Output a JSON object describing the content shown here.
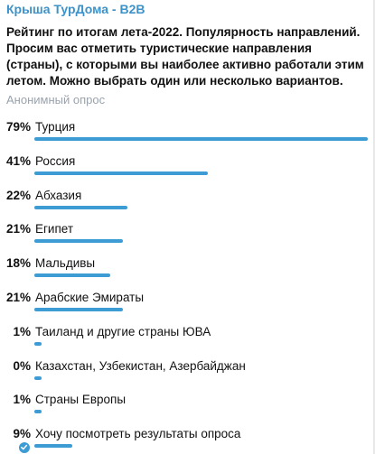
{
  "header": {
    "channel_name": "Крыша ТурДома - B2B"
  },
  "poll": {
    "question": "Рейтинг по итогам лета-2022. Популярность направлений. Просим вас отметить туристические направления (страны), с которыми вы наиболее активно работали этим летом. Можно выбрать один или несколько вариантов.",
    "type_label": "Анонимный опрос",
    "accent_color": "#3e9cd4",
    "options": [
      {
        "percent_label": "79%",
        "label": "Турция",
        "percent": 79
      },
      {
        "percent_label": "41%",
        "label": "Россия",
        "percent": 41
      },
      {
        "percent_label": "22%",
        "label": "Абхазия",
        "percent": 22
      },
      {
        "percent_label": "21%",
        "label": "Египет",
        "percent": 21
      },
      {
        "percent_label": "18%",
        "label": "Мальдивы",
        "percent": 18
      },
      {
        "percent_label": "21%",
        "label": "Арабские Эмираты",
        "percent": 21
      },
      {
        "percent_label": "1%",
        "label": "Таиланд и другие страны ЮВА",
        "percent": 1
      },
      {
        "percent_label": "0%",
        "label": "Казахстан, Узбекистан, Азербайджан",
        "percent": 0
      },
      {
        "percent_label": "1%",
        "label": "Страны Европы",
        "percent": 1
      },
      {
        "percent_label": "9%",
        "label": "Хочу посмотреть результаты опроса",
        "percent": 9,
        "selected": true
      }
    ]
  }
}
